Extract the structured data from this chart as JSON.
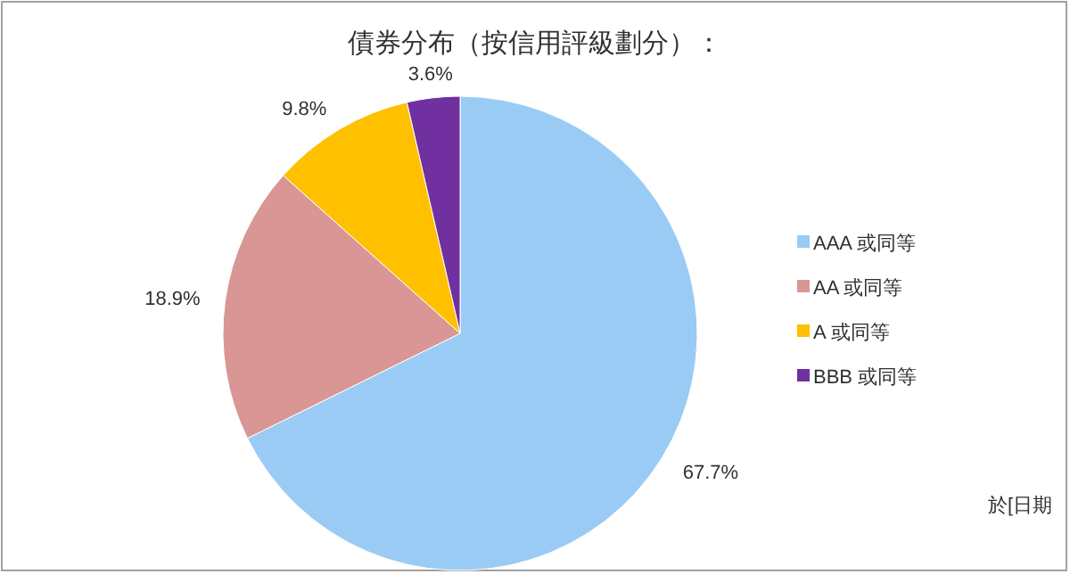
{
  "chart_data": {
    "type": "pie",
    "title": "債券分布（按信用評級劃分）：",
    "categories": [
      "AAA 或同等",
      "AA 或同等",
      "A 或同等",
      "BBB 或同等"
    ],
    "values": [
      67.7,
      18.9,
      9.8,
      3.6
    ],
    "colors": [
      "#99cbf5",
      "#d99694",
      "#ffc000",
      "#7030a0"
    ],
    "value_labels": [
      "67.7%",
      "18.9%",
      "9.8%",
      "3.6%"
    ],
    "legend": "right",
    "annotations": [
      "於[日期"
    ]
  }
}
